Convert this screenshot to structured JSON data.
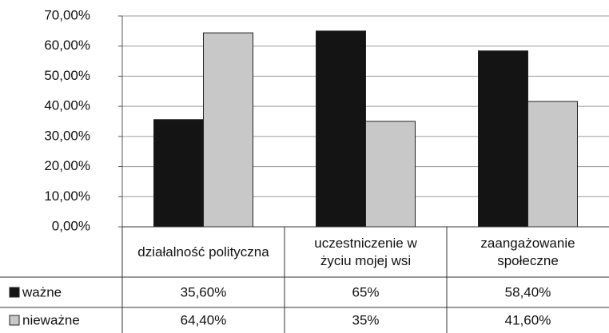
{
  "chart_data": {
    "type": "bar",
    "categories": [
      "działalność polityczna",
      "uczestniczenie w życiu mojej wsi",
      "zaangażowanie społeczne"
    ],
    "series": [
      {
        "name": "ważne",
        "color": "#141414",
        "values": [
          35.6,
          65,
          58.4
        ],
        "value_labels": [
          "35,60%",
          "65%",
          "58,40%"
        ]
      },
      {
        "name": "nieważne",
        "color": "#c8c8c8",
        "values": [
          64.4,
          35,
          41.6
        ],
        "value_labels": [
          "64,40%",
          "35%",
          "41,60%"
        ]
      }
    ],
    "ylim": [
      0,
      70
    ],
    "yticks": [
      {
        "value": 0,
        "label": "0,00%"
      },
      {
        "value": 10,
        "label": "10,00%"
      },
      {
        "value": 20,
        "label": "20,00%"
      },
      {
        "value": 30,
        "label": "30,00%"
      },
      {
        "value": 40,
        "label": "40,00%"
      },
      {
        "value": 50,
        "label": "50,00%"
      },
      {
        "value": 60,
        "label": "60,00%"
      },
      {
        "value": 70,
        "label": "70,00%"
      }
    ],
    "grid": true
  }
}
